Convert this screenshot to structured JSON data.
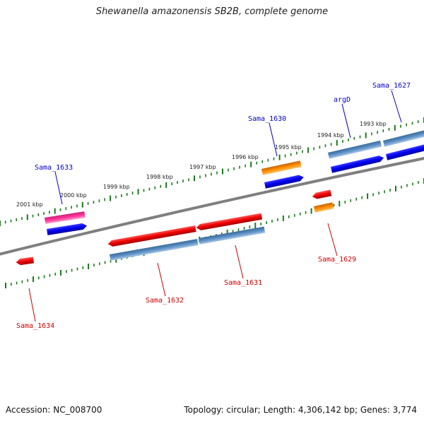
{
  "title": "Shewanella amazonensis SB2B, complete genome",
  "footer": {
    "accession": "Accession: NC_008700",
    "topology": "Topology: circular; Length: 4,306,142 bp; Genes: 3,774"
  },
  "colors": {
    "backbone": "#808080",
    "cds_forward": "#0000ee",
    "cds_reverse": "#ee0000",
    "trna": "#ff8c00",
    "rrna": "#ff3399",
    "feature_blue": "#4a7fb5",
    "ruler_ticks": "#1a7a1a",
    "label_forward": "#0000cc",
    "label_reverse": "#cc0000"
  },
  "ruler_labels": [
    "2001 kbp",
    "2000 kbp",
    "1999 kbp",
    "1998 kbp",
    "1997 kbp",
    "1996 kbp",
    "1995 kbp",
    "1994 kbp",
    "1993 kbp"
  ],
  "gene_labels": {
    "sama_1627": "Sama_1627",
    "argd": "argD",
    "sama_1630": "Sama_1630",
    "sama_1633": "Sama_1633",
    "sama_1629": "Sama_1629",
    "sama_1631": "Sama_1631",
    "sama_1632": "Sama_1632",
    "sama_1634": "Sama_1634"
  }
}
